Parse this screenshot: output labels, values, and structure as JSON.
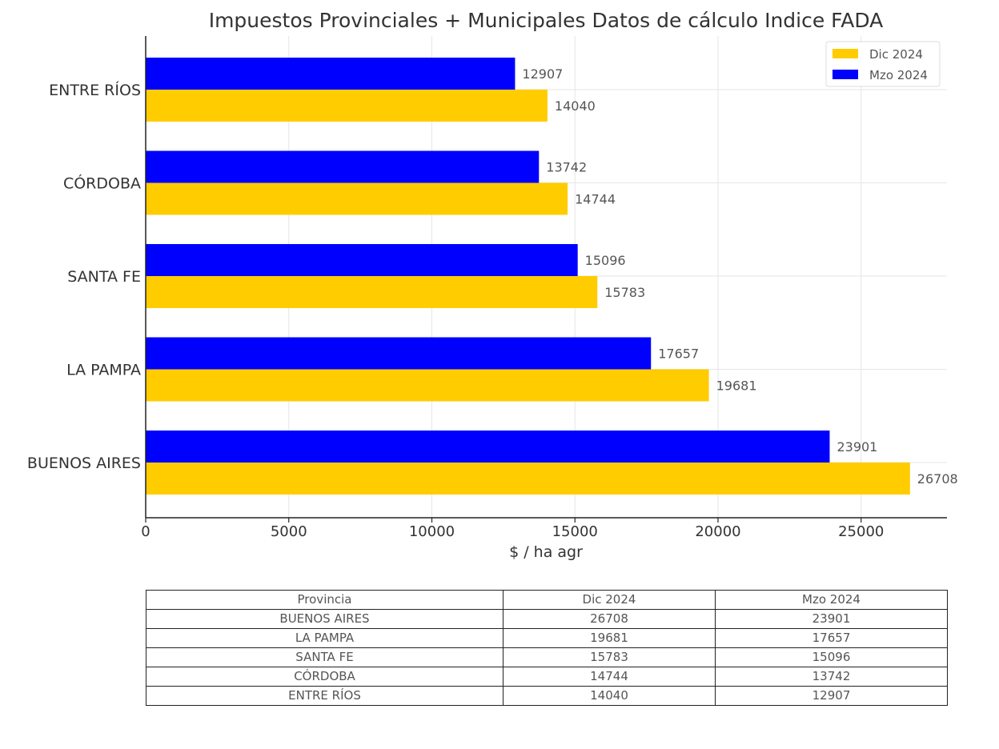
{
  "chart_data": {
    "type": "bar",
    "orientation": "horizontal",
    "title": "Impuestos Provinciales + Municipales Datos de cálculo Indice FADA",
    "xlabel": "$ / ha agr",
    "ylabel": "",
    "categories": [
      "ENTRE RÍOS",
      "CÓRDOBA",
      "SANTA FE",
      "LA PAMPA",
      "BUENOS AIRES"
    ],
    "series": [
      {
        "name": "Mzo 2024",
        "color": "#0000ff",
        "values": [
          12907,
          13742,
          15096,
          17657,
          23901
        ]
      },
      {
        "name": "Dic 2024",
        "color": "#ffcc00",
        "values": [
          14040,
          14744,
          15783,
          19681,
          26708
        ]
      }
    ],
    "xlim": [
      0,
      28000
    ],
    "xticks": [
      0,
      5000,
      10000,
      15000,
      20000,
      25000
    ],
    "grid": true,
    "legend": {
      "placement": "top-right",
      "entries": [
        "Dic 2024",
        "Mzo 2024"
      ]
    },
    "data_labels": true
  },
  "table": {
    "headers": [
      "Provincia",
      "Dic 2024",
      "Mzo 2024"
    ],
    "rows": [
      [
        "BUENOS AIRES",
        "26708",
        "23901"
      ],
      [
        "LA PAMPA",
        "19681",
        "17657"
      ],
      [
        "SANTA FE",
        "15783",
        "15096"
      ],
      [
        "CÓRDOBA",
        "14744",
        "13742"
      ],
      [
        "ENTRE RÍOS",
        "14040",
        "12907"
      ]
    ]
  }
}
